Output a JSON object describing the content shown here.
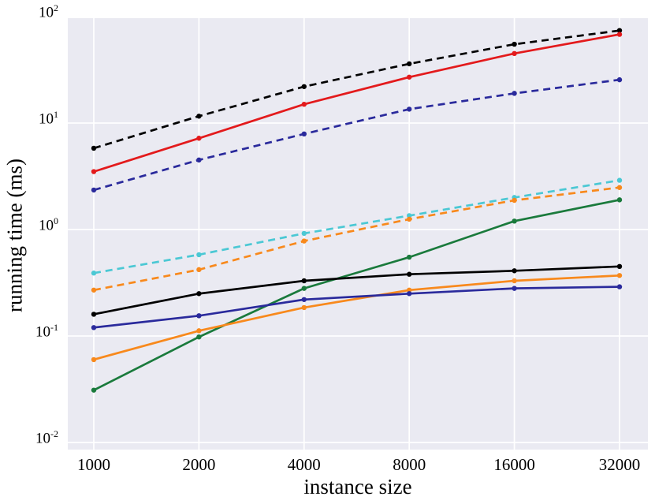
{
  "chart_data": {
    "type": "line",
    "title": "",
    "xlabel": "instance size",
    "ylabel": "running time (ms)",
    "x_scale": "log2",
    "y_scale": "log10",
    "xlim": [
      840,
      38600
    ],
    "ylim": [
      0.01,
      100
    ],
    "grid": true,
    "legend_position": "none",
    "plot_background": "#eaeaf2",
    "grid_color": "#ffffff",
    "x": [
      1000,
      2000,
      4000,
      8000,
      16000,
      32000
    ],
    "x_tick_labels": [
      "1000",
      "2000",
      "4000",
      "8000",
      "16000",
      "32000"
    ],
    "y_tick_labels": [
      {
        "base": "10",
        "exp": "2",
        "value": 100
      },
      {
        "base": "10",
        "exp": "1",
        "value": 10
      },
      {
        "base": "10",
        "exp": "0",
        "value": 1
      },
      {
        "base": "10",
        "exp": "-1",
        "value": 0.1
      },
      {
        "base": "10",
        "exp": "-2",
        "value": 0.01
      }
    ],
    "series": [
      {
        "name": "black-dashed",
        "color": "#000000",
        "style": "dashed",
        "values": [
          5.8,
          11.6,
          22,
          36,
          55,
          74
        ]
      },
      {
        "name": "red-solid",
        "color": "#e31a1c",
        "style": "solid",
        "values": [
          3.5,
          7.2,
          15,
          27,
          45,
          68
        ]
      },
      {
        "name": "navy-dashed",
        "color": "#2a2a9c",
        "style": "dashed",
        "values": [
          2.35,
          4.5,
          7.9,
          13.5,
          19,
          25.5
        ]
      },
      {
        "name": "cyan-dashed",
        "color": "#4bc8d4",
        "style": "dashed",
        "values": [
          0.39,
          0.58,
          0.92,
          1.35,
          2.0,
          2.9
        ]
      },
      {
        "name": "orange-dashed",
        "color": "#f8891c",
        "style": "dashed",
        "values": [
          0.27,
          0.42,
          0.78,
          1.25,
          1.88,
          2.48
        ]
      },
      {
        "name": "green-solid",
        "color": "#1a7a3c",
        "style": "solid",
        "values": [
          0.031,
          0.098,
          0.28,
          0.55,
          1.2,
          1.9
        ]
      },
      {
        "name": "black-solid",
        "color": "#000000",
        "style": "solid",
        "values": [
          0.16,
          0.25,
          0.33,
          0.38,
          0.41,
          0.45
        ]
      },
      {
        "name": "orange-solid",
        "color": "#f8891c",
        "style": "solid",
        "values": [
          0.06,
          0.112,
          0.185,
          0.27,
          0.33,
          0.37
        ]
      },
      {
        "name": "navy-solid",
        "color": "#2a2a9c",
        "style": "solid",
        "values": [
          0.12,
          0.155,
          0.22,
          0.25,
          0.28,
          0.29
        ]
      }
    ]
  }
}
